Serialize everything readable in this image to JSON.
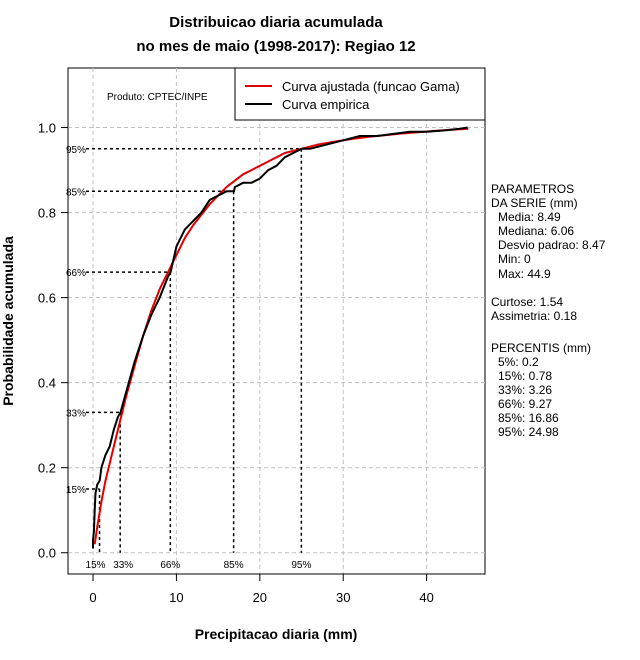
{
  "chart_data": {
    "type": "line",
    "title_line1": "Distribuicao diaria acumulada",
    "title_line2": "no mes de maio (1998-2017): Regiao 12",
    "xlabel": "Precipitacao diaria (mm)",
    "ylabel": "Probabilidade acumulada",
    "xlim": [
      -3,
      47
    ],
    "ylim": [
      -0.05,
      1.14
    ],
    "x_ticks": [
      0,
      10,
      20,
      30,
      40
    ],
    "y_ticks": [
      0.0,
      0.2,
      0.4,
      0.6,
      0.8,
      1.0
    ],
    "y_tick_labels": [
      "0.0",
      "0.2",
      "0.4",
      "0.6",
      "0.8",
      "1.0"
    ],
    "grid": true,
    "credit": "Produto: CPTEC/INPE",
    "legend": {
      "position": "top-right",
      "entries": [
        {
          "label": "Curva ajustada (funcao Gama)",
          "color": "#e00000"
        },
        {
          "label": "Curva empirica",
          "color": "#000000"
        }
      ]
    },
    "series": [
      {
        "name": "Curva ajustada (funcao Gama)",
        "color": "#e00000",
        "x": [
          0.2,
          0.5,
          1,
          1.5,
          2,
          3,
          4,
          5,
          6,
          7,
          8,
          9,
          10,
          11,
          12,
          13,
          14,
          15,
          16,
          17,
          18,
          19,
          20,
          21,
          22,
          23,
          24,
          25,
          27,
          29,
          31,
          33,
          35,
          37,
          39,
          41,
          43,
          45
        ],
        "y": [
          0.02,
          0.06,
          0.12,
          0.17,
          0.21,
          0.29,
          0.37,
          0.44,
          0.51,
          0.57,
          0.62,
          0.66,
          0.7,
          0.74,
          0.77,
          0.795,
          0.82,
          0.84,
          0.86,
          0.875,
          0.89,
          0.9,
          0.91,
          0.92,
          0.93,
          0.94,
          0.945,
          0.95,
          0.96,
          0.967,
          0.973,
          0.978,
          0.982,
          0.986,
          0.989,
          0.992,
          0.995,
          0.997
        ]
      },
      {
        "name": "Curva empirica",
        "color": "#000000",
        "x": [
          0,
          0,
          0.1,
          0.2,
          0.3,
          0.5,
          0.8,
          1,
          1.5,
          2,
          2.5,
          3,
          3.3,
          4,
          5,
          6,
          7,
          8,
          9,
          9.3,
          10,
          11,
          12,
          13,
          14,
          15,
          16,
          16.9,
          17,
          18,
          19,
          20,
          21,
          22,
          23,
          24,
          25,
          26,
          28,
          30,
          32,
          34,
          36,
          38,
          40,
          42,
          44,
          44.9
        ],
        "y": [
          0.01,
          0.03,
          0.05,
          0.1,
          0.14,
          0.16,
          0.17,
          0.2,
          0.23,
          0.25,
          0.29,
          0.32,
          0.33,
          0.38,
          0.45,
          0.51,
          0.56,
          0.6,
          0.65,
          0.66,
          0.72,
          0.76,
          0.78,
          0.8,
          0.83,
          0.84,
          0.85,
          0.85,
          0.86,
          0.87,
          0.87,
          0.88,
          0.9,
          0.91,
          0.93,
          0.94,
          0.95,
          0.95,
          0.96,
          0.97,
          0.98,
          0.98,
          0.985,
          0.99,
          0.99,
          0.993,
          0.997,
          1.0
        ]
      }
    ],
    "percentile_markers": [
      {
        "label": "15%",
        "x": 0.78,
        "y": 0.15,
        "bottom_label": "15%",
        "left_label": "15%"
      },
      {
        "label": "33%",
        "x": 3.26,
        "y": 0.33,
        "bottom_label": "33%",
        "left_label": "33%"
      },
      {
        "label": "66%",
        "x": 9.27,
        "y": 0.66,
        "bottom_label": "66%",
        "left_label": "66%"
      },
      {
        "label": "85%",
        "x": 16.86,
        "y": 0.85,
        "bottom_label": "85%",
        "left_label": "85%"
      },
      {
        "label": "95%",
        "x": 24.98,
        "y": 0.95,
        "bottom_label": "95%",
        "left_label": "95%"
      }
    ]
  },
  "stats": {
    "header1": "PARAMETROS",
    "header2": "DA SERIE (mm)",
    "media": "Media: 8.49",
    "mediana": "Mediana: 6.06",
    "desvio": "Desvio padrao: 8.47",
    "min": "Min: 0",
    "max": "Max: 44.9",
    "curtose": "Curtose: 1.54",
    "assimetria": "Assimetria: 0.18",
    "percentis_header": "PERCENTIS (mm)",
    "p5": "5%: 0.2",
    "p15": "15%: 0.78",
    "p33": "33%: 3.26",
    "p66": "66%: 9.27",
    "p85": "85%: 16.86",
    "p95": "95%: 24.98"
  }
}
